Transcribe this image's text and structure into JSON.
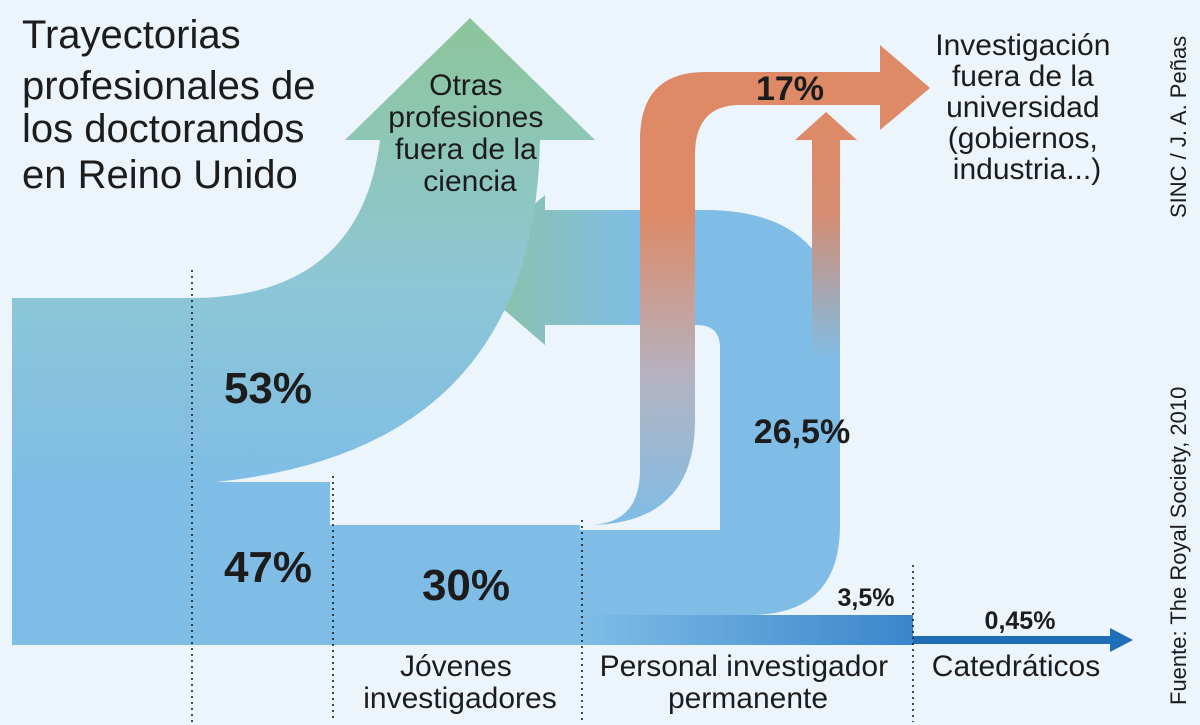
{
  "title_lines": [
    "Trayectorias",
    "profesionales de",
    "los doctorandos",
    "en Reino Unido"
  ],
  "destinations": {
    "other_professions": [
      "Otras",
      "profesiones",
      "fuera de la",
      "ciencia"
    ],
    "research_outside": [
      "Investigación",
      "fuera de la",
      "universidad",
      "(gobiernos,",
      "industria...)"
    ]
  },
  "values": {
    "leave_science": "53%",
    "stay_research": "47%",
    "young_researchers": "30%",
    "research_outside": "17%",
    "permanent_staff": "26,5%",
    "permanent_to_prof": "3,5%",
    "professors": "0,45%"
  },
  "stages": {
    "young": [
      "Jóvenes",
      "investigadores"
    ],
    "permanent": [
      "Personal investigador",
      "permanente"
    ],
    "professors": [
      "Catedráticos"
    ]
  },
  "credits": {
    "author": "SINC / J. A. Peñas",
    "source": "Fuente: The Royal Society, 2010"
  },
  "colors": {
    "background": "#ecf5fb",
    "flow_blue": "#7fbde6",
    "green": "#8ec49c",
    "orange": "#de8a66",
    "professor_arrow": "#1f6fb8"
  }
}
